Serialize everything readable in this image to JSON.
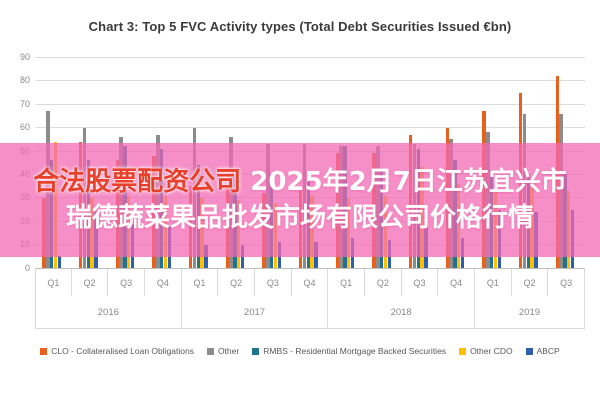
{
  "title": "Chart 3: Top 5 FVC Activity types (Total Debt Securities Issued €bn)",
  "overlay": {
    "line1_red": "合法股票配资公司",
    "line1_white": " 2025年2月7日江苏宜兴市",
    "line2": "瑞德蔬菜果品批发市场有限公司价格行情",
    "band_color": "#f368b4",
    "red_text_color": "#e8402a",
    "white_text_color": "#ffffff"
  },
  "chart_data": {
    "type": "bar",
    "title": "Chart 3: Top 5 FVC Activity types (Total Debt Securities Issued €bn)",
    "xlabel": "",
    "ylabel": "",
    "ylim": [
      0,
      90
    ],
    "yticks": [
      0,
      10,
      20,
      30,
      40,
      50,
      60,
      70,
      80,
      90
    ],
    "grid": true,
    "legend_position": "bottom",
    "years": [
      {
        "label": "2016",
        "quarters": [
          "Q1",
          "Q2",
          "Q3",
          "Q4"
        ]
      },
      {
        "label": "2017",
        "quarters": [
          "Q1",
          "Q2",
          "Q3",
          "Q4"
        ]
      },
      {
        "label": "2018",
        "quarters": [
          "Q1",
          "Q2",
          "Q3",
          "Q4"
        ]
      },
      {
        "label": "2019",
        "quarters": [
          "Q1",
          "Q2",
          "Q3"
        ]
      }
    ],
    "categories": [
      "2016 Q1",
      "2016 Q2",
      "2016 Q3",
      "2016 Q4",
      "2017 Q1",
      "2017 Q2",
      "2017 Q3",
      "2017 Q4",
      "2018 Q1",
      "2018 Q2",
      "2018 Q3",
      "2018 Q4",
      "2019 Q1",
      "2019 Q2",
      "2019 Q3"
    ],
    "series": [
      {
        "name": "CLO - Collateralised Loan Obligations",
        "color": "#E8611C",
        "values": [
          30,
          54,
          46,
          48,
          35,
          34,
          32,
          35,
          49,
          49,
          57,
          60,
          67,
          75,
          82
        ]
      },
      {
        "name": "Other",
        "color": "#8C8C8C",
        "values": [
          67,
          60,
          56,
          57,
          60,
          56,
          53,
          53,
          52,
          52,
          53,
          55,
          58,
          66,
          66
        ]
      },
      {
        "name": "RMBS - Residential Mortgage Backed Securities",
        "color": "#1F7391",
        "values": [
          46,
          46,
          52,
          51,
          44,
          42,
          40,
          40,
          52,
          42,
          51,
          46,
          42,
          40,
          40
        ]
      },
      {
        "name": "Other CDO",
        "color": "#FFC000",
        "values": [
          54,
          30,
          31,
          31,
          30,
          29,
          28,
          31,
          30,
          31,
          43,
          36,
          33,
          34,
          33
        ]
      },
      {
        "name": "ABCP",
        "color": "#2E5FAC",
        "values": [
          5,
          24,
          19,
          18,
          10,
          10,
          11,
          11,
          13,
          12,
          18,
          13,
          25,
          24,
          25
        ]
      }
    ]
  }
}
